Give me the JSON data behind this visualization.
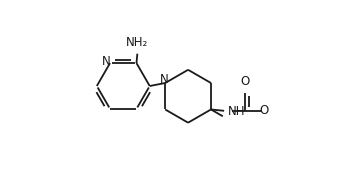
{
  "bg_color": "#ffffff",
  "line_color": "#1a1a1a",
  "line_width": 1.3,
  "font_size": 8.5,
  "figsize": [
    3.54,
    1.72
  ],
  "dpi": 100,
  "xlim": [
    0.0,
    1.0
  ],
  "ylim": [
    0.0,
    1.0
  ]
}
